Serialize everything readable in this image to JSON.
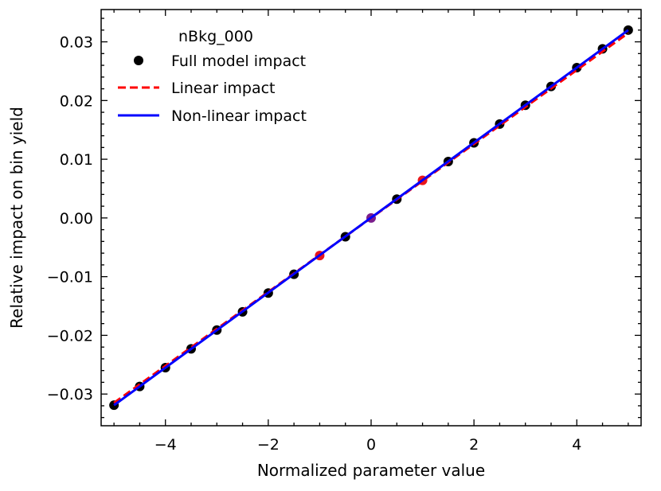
{
  "chart_data": {
    "type": "scatter",
    "title": "",
    "xlabel": "Normalized parameter value",
    "ylabel": "Relative impact on bin yield",
    "xlim": [
      -5.25,
      5.25
    ],
    "ylim": [
      -0.0354,
      0.0355
    ],
    "x_ticks": [
      -4,
      -2,
      0,
      2,
      4
    ],
    "x_tick_labels": [
      "−4",
      "−2",
      "0",
      "2",
      "4"
    ],
    "y_ticks": [
      -0.03,
      -0.02,
      -0.01,
      0.0,
      0.01,
      0.02,
      0.03
    ],
    "y_tick_labels": [
      "−0.03",
      "−0.02",
      "−0.01",
      "0.00",
      "0.01",
      "0.02",
      "0.03"
    ],
    "grid": false,
    "legend": {
      "placement": "top-left",
      "title": "nBkg_000",
      "entries": [
        "Full model impact",
        "Linear impact",
        "Non-linear impact"
      ]
    },
    "series": [
      {
        "name": "Full model impact",
        "kind": "points",
        "color": "#000000",
        "x": [
          -5,
          -4.5,
          -4,
          -3.5,
          -3,
          -2.5,
          -2,
          -1.5,
          -0.5,
          0.5,
          1.5,
          2,
          2.5,
          3,
          3.5,
          4,
          4.5,
          5
        ],
        "y": [
          -0.0319,
          -0.0287,
          -0.0255,
          -0.0223,
          -0.0191,
          -0.016,
          -0.0128,
          -0.0096,
          -0.0032,
          0.0032,
          0.0096,
          0.0128,
          0.016,
          0.0192,
          0.0224,
          0.0256,
          0.0288,
          0.032
        ]
      },
      {
        "name": "Variation points",
        "kind": "points",
        "color": "#e8161b",
        "x": [
          -1,
          1
        ],
        "y": [
          -0.0064,
          0.0064
        ]
      },
      {
        "name": "Nominal point",
        "kind": "points",
        "color": "#7a1e8c",
        "x": [
          0
        ],
        "y": [
          0.0
        ]
      },
      {
        "name": "Linear impact",
        "kind": "dashed-line",
        "color": "#ff0000",
        "x": [
          -5,
          5
        ],
        "y": [
          -0.0315,
          0.0315
        ]
      },
      {
        "name": "Non-linear impact",
        "kind": "line",
        "color": "#0000ff",
        "x": [
          -5,
          5
        ],
        "y": [
          -0.0319,
          0.032
        ]
      }
    ]
  }
}
